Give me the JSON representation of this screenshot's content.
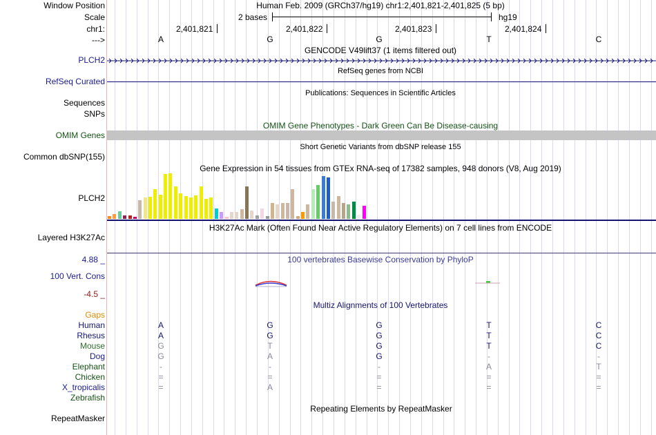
{
  "labels": {
    "window_position": "Window Position",
    "scale": "Scale",
    "chrom": "chr1:",
    "strand": "--->",
    "plch2": "PLCH2",
    "refseq": "RefSeq Curated",
    "sequences": "Sequences",
    "snps": "SNPs",
    "omim": "OMIM Genes",
    "dbsnp": "Common dbSNP(155)",
    "gtex": "PLCH2",
    "h3k27ac": "Layered H3K27Ac",
    "cons_top": "4.88 _",
    "cons": "100 Vert. Cons",
    "cons_bottom": "-4.5 _",
    "gaps": "Gaps",
    "repeatmasker": "RepeatMasker"
  },
  "header": {
    "position": "Human Feb. 2009 (GRCh37/hg19)   chr1:2,401,821-2,401,825 (5 bp)",
    "scale_left": "2 bases",
    "scale_right": "hg19",
    "coords": [
      "2,401,821",
      "2,401,822",
      "2,401,823",
      "2,401,824"
    ],
    "bases": [
      "A",
      "G",
      "G",
      "T",
      "C"
    ]
  },
  "tracks": {
    "gencode": "GENCODE V49lift37 (1 items filtered out)",
    "refseq": "RefSeq genes from NCBI",
    "publications": "Publications: Sequences in Scientific Articles",
    "omim": "OMIM Gene Phenotypes - Dark Green Can Be Disease-causing",
    "dbsnp": "Short Genetic Variants from dbSNP release 155",
    "gtex": "Gene Expression in 54 tissues from GTEx RNA-seq of 17382 samples, 948 donors (V8, Aug 2019)",
    "h3k27ac": "H3K27Ac Mark (Often Found Near Active Regulatory Elements) on 7 cell lines from ENCODE",
    "phylop": "100 vertebrates Basewise Conservation by PhyloP",
    "multiz": "Multiz Alignments of 100 Vertebrates",
    "repeatmasker": "Repeating Elements by RepeatMasker"
  },
  "gtex_bars": [
    {
      "v": 4,
      "c": "#ff8c1a"
    },
    {
      "v": 7,
      "c": "#ff9d40"
    },
    {
      "v": 11,
      "c": "#66cc99"
    },
    {
      "v": 5,
      "c": "#8b2252"
    },
    {
      "v": 5,
      "c": "#b22222"
    },
    {
      "v": 3,
      "c": "#cc0066"
    },
    {
      "v": 26,
      "c": "#c9b8a8"
    },
    {
      "v": 30,
      "c": "#f0e68c"
    },
    {
      "v": 31,
      "c": "#eeee00"
    },
    {
      "v": 42,
      "c": "#eeee00"
    },
    {
      "v": 34,
      "c": "#eeee00"
    },
    {
      "v": 63,
      "c": "#eeee00"
    },
    {
      "v": 64,
      "c": "#eeee00"
    },
    {
      "v": 46,
      "c": "#eeee00"
    },
    {
      "v": 36,
      "c": "#eeee00"
    },
    {
      "v": 32,
      "c": "#eeee00"
    },
    {
      "v": 30,
      "c": "#eeee00"
    },
    {
      "v": 33,
      "c": "#eeee00"
    },
    {
      "v": 46,
      "c": "#eeee00"
    },
    {
      "v": 28,
      "c": "#eeee00"
    },
    {
      "v": 30,
      "c": "#eeee00"
    },
    {
      "v": 15,
      "c": "#00ced1"
    },
    {
      "v": 10,
      "c": "#cc99ff"
    },
    {
      "v": 3,
      "c": "#ffc0cb"
    },
    {
      "v": 10,
      "c": "#e6d5c9"
    },
    {
      "v": 10,
      "c": "#e6d5c9"
    },
    {
      "v": 14,
      "c": "#cdb79e"
    },
    {
      "v": 46,
      "c": "#8b7355"
    },
    {
      "v": 12,
      "c": "#e6d5c9"
    },
    {
      "v": 5,
      "c": "#a0a0a0"
    },
    {
      "v": 15,
      "c": "#f5d5e5"
    },
    {
      "v": 4,
      "c": "#999999"
    },
    {
      "v": 22,
      "c": "#d2b48c"
    },
    {
      "v": 20,
      "c": "#e6d5c9"
    },
    {
      "v": 22,
      "c": "#cdb79e"
    },
    {
      "v": 22,
      "c": "#c9b8a8"
    },
    {
      "v": 42,
      "c": "#cdb79e"
    },
    {
      "v": 4,
      "c": "#d2a679"
    },
    {
      "v": 10,
      "c": "#ff9900"
    },
    {
      "v": 20,
      "c": "#cdb79e"
    },
    {
      "v": 42,
      "c": "#b4eeb4"
    },
    {
      "v": 48,
      "c": "#66cd66"
    },
    {
      "v": 60,
      "c": "#3a7bd5"
    },
    {
      "v": 58,
      "c": "#1f5fc4"
    },
    {
      "v": 24,
      "c": "#c9b8a8"
    },
    {
      "v": 32,
      "c": "#cdb79e"
    },
    {
      "v": 22,
      "c": "#b5a58a"
    },
    {
      "v": 20,
      "c": "#8fbc8f"
    },
    {
      "v": 24,
      "c": "#008b45"
    },
    {
      "v": 6,
      "c": "#eeeeee"
    },
    {
      "v": 18,
      "c": "#ff00ff"
    }
  ],
  "alignment": [
    {
      "species": "Human",
      "color": "#141470",
      "bases": [
        "A",
        "G",
        "G",
        "T",
        "C"
      ],
      "gray": [
        false,
        false,
        false,
        false,
        false
      ]
    },
    {
      "species": "Rhesus",
      "color": "#141470",
      "bases": [
        "A",
        "G",
        "G",
        "T",
        "C"
      ],
      "gray": [
        false,
        false,
        false,
        false,
        false
      ]
    },
    {
      "species": "Mouse",
      "color": "#2a6e2a",
      "bases": [
        "G",
        "T",
        "G",
        "T",
        "C"
      ],
      "gray": [
        true,
        true,
        false,
        false,
        false
      ]
    },
    {
      "species": "Dog",
      "color": "#1a1a8c",
      "bases": [
        "G",
        "A",
        "G",
        "-",
        "-"
      ],
      "gray": [
        true,
        true,
        false,
        true,
        true
      ]
    },
    {
      "species": "Elephant",
      "color": "#145214",
      "bases": [
        "-",
        "-",
        "-",
        "A",
        "T"
      ],
      "gray": [
        true,
        true,
        true,
        true,
        true
      ]
    },
    {
      "species": "Chicken",
      "color": "#145214",
      "bases": [
        "=",
        "=",
        "=",
        "=",
        "="
      ],
      "gray": [
        true,
        true,
        true,
        true,
        true
      ]
    },
    {
      "species": "X_tropicalis",
      "color": "#1a1a8c",
      "bases": [
        "=",
        "A",
        "=",
        "=",
        "="
      ],
      "gray": [
        true,
        true,
        true,
        true,
        true
      ]
    },
    {
      "species": "Zebrafish",
      "color": "#145214",
      "bases": [
        "",
        "",
        "",
        "",
        ""
      ],
      "gray": [
        true,
        true,
        true,
        true,
        true
      ]
    }
  ],
  "colors": {
    "gencode": "#141470",
    "refseq": "#0c0c78",
    "omim_bar": "#c4c4c4",
    "h3k27ac_line": "#3a3a6a"
  }
}
